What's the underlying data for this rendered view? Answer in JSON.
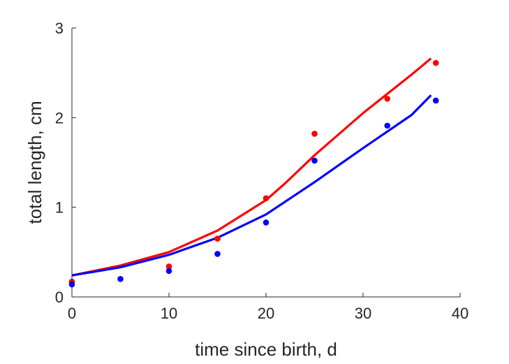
{
  "chart_data": {
    "type": "scatter",
    "title": "",
    "xlabel": "time since birth, d",
    "ylabel": "total length, cm",
    "xlim": [
      0,
      40
    ],
    "ylim": [
      0,
      3
    ],
    "xticks": [
      0,
      10,
      20,
      30,
      40
    ],
    "yticks": [
      0,
      1,
      2,
      3
    ],
    "grid": false,
    "legend": "none",
    "series": [
      {
        "color": "#ff0000",
        "points": {
          "x": [
            0,
            10,
            15,
            20,
            25,
            32.5,
            37.5
          ],
          "y": [
            0.17,
            0.34,
            0.65,
            1.1,
            1.82,
            2.21,
            2.61
          ]
        },
        "fit": {
          "x": [
            0,
            5,
            10,
            15,
            20,
            22,
            25,
            30,
            35,
            37
          ],
          "y": [
            0.24,
            0.35,
            0.5,
            0.74,
            1.08,
            1.27,
            1.58,
            2.05,
            2.48,
            2.66
          ]
        }
      },
      {
        "color": "#0000ff",
        "points": {
          "x": [
            0,
            5,
            10,
            15,
            20,
            25,
            32.5,
            37.5
          ],
          "y": [
            0.14,
            0.2,
            0.29,
            0.48,
            0.83,
            1.52,
            1.91,
            2.19
          ]
        },
        "fit": {
          "x": [
            0,
            5,
            10,
            15,
            20,
            25,
            30,
            35,
            37
          ],
          "y": [
            0.24,
            0.33,
            0.47,
            0.66,
            0.92,
            1.28,
            1.66,
            2.03,
            2.25
          ]
        }
      }
    ]
  }
}
